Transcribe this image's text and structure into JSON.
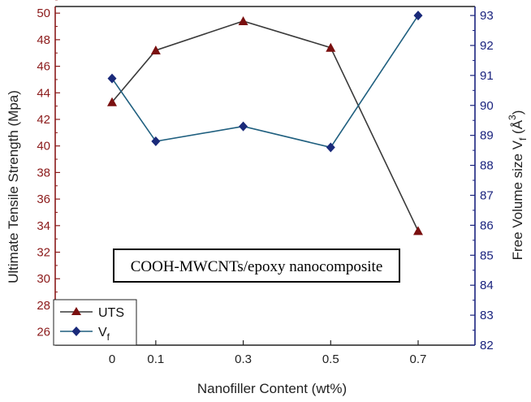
{
  "chart_data": {
    "type": "line",
    "x": [
      0,
      0.1,
      0.3,
      0.5,
      0.7
    ],
    "x_tick_labels": [
      "0",
      "0.1",
      "0.3",
      "0.5",
      "0.7"
    ],
    "xlabel": "Nanofiller Content (wt%)",
    "xlim": [
      -0.13,
      0.83
    ],
    "ylabel_left": "Ultimate Tensile Strength (Mpa)",
    "ylim_left": [
      25,
      50.5
    ],
    "yticks_left": [
      "26",
      "28",
      "30",
      "32",
      "34",
      "36",
      "38",
      "40",
      "42",
      "44",
      "46",
      "48",
      "50"
    ],
    "ylabel_right_main": "Free Volume  size V",
    "ylabel_right_sub": "f",
    "ylabel_right_unit": " (Å",
    "ylabel_right_sup": "3",
    "ylabel_right_close": ")",
    "ylim_right": [
      82,
      93.3
    ],
    "yticks_right": [
      "82",
      "83",
      "84",
      "85",
      "86",
      "87",
      "88",
      "89",
      "90",
      "91",
      "92",
      "93"
    ],
    "series": [
      {
        "name": "UTS",
        "axis": "left",
        "values": [
          43.3,
          47.2,
          49.4,
          47.4,
          33.6
        ],
        "line_color": "#3a3a3a",
        "marker_color": "#7a1010",
        "marker": "triangle"
      },
      {
        "name": "V",
        "name_sub": "f",
        "axis": "right",
        "values": [
          90.9,
          88.8,
          89.3,
          88.6,
          93.0
        ],
        "line_color": "#1f5f7f",
        "marker_color": "#1a2a7a",
        "marker": "diamond"
      }
    ],
    "annotation": "COOH-MWCNTs/epoxy nanocomposite",
    "legend_position": "bottom-left",
    "grid": false,
    "colors": {
      "left_axis": "#8b1a1a",
      "right_axis": "#1a237e",
      "frame": "#222222"
    }
  }
}
